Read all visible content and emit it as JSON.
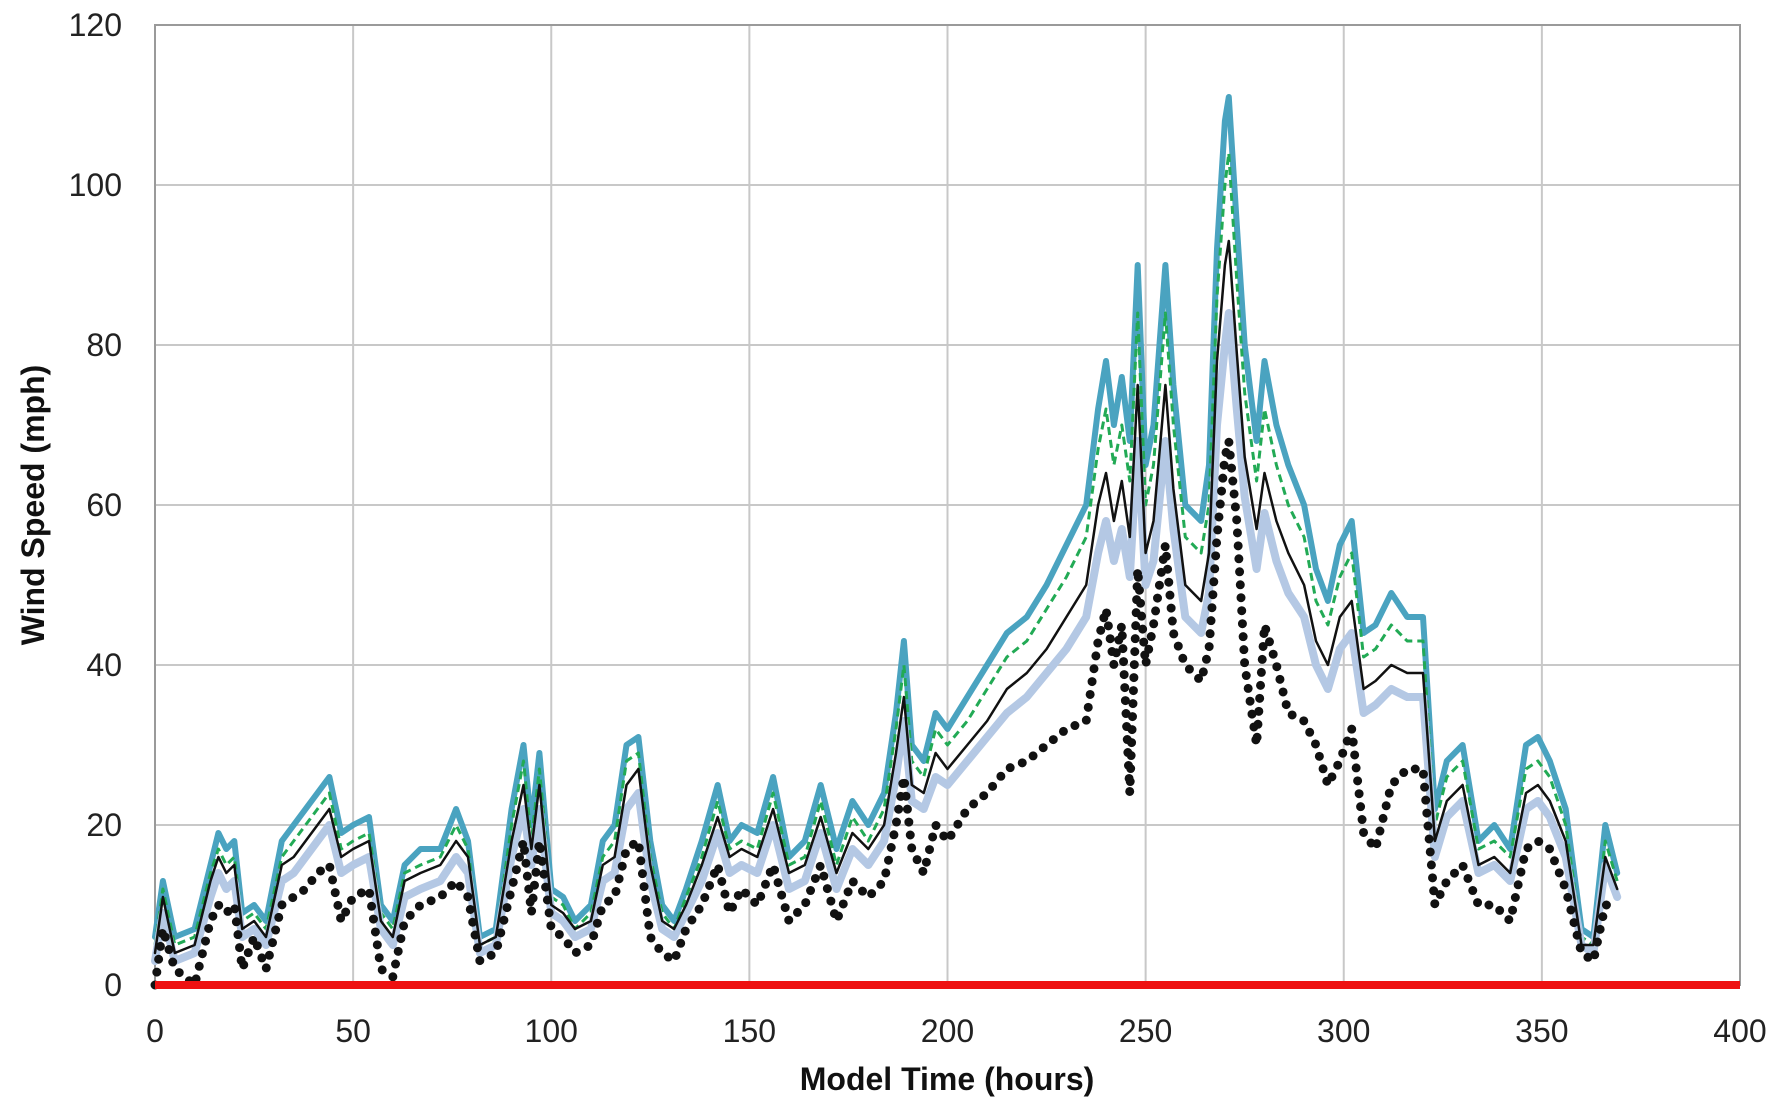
{
  "chart_data": {
    "type": "line",
    "title": "",
    "xlabel": "Model Time (hours)",
    "ylabel": "Wind Speed (mph)",
    "xlim": [
      0,
      400
    ],
    "ylim": [
      0,
      120
    ],
    "xticks": [
      "0",
      "50",
      "100",
      "150",
      "200",
      "250",
      "300",
      "350",
      "400"
    ],
    "yticks": [
      "0",
      "20",
      "40",
      "60",
      "80",
      "100",
      "120"
    ],
    "grid": true,
    "legend": "none",
    "series": [
      {
        "style": "solid-thick",
        "color": "#4aa3c0",
        "x": [
          0,
          2,
          5,
          10,
          14,
          16,
          18,
          20,
          22,
          25,
          28,
          32,
          35,
          38,
          41,
          44,
          47,
          50,
          54,
          57,
          60,
          63,
          67,
          72,
          76,
          79,
          82,
          86,
          90,
          93,
          95,
          97,
          100,
          103,
          106,
          110,
          113,
          116,
          119,
          122,
          125,
          128,
          131,
          134,
          138,
          142,
          145,
          148,
          152,
          156,
          160,
          164,
          168,
          172,
          176,
          180,
          184,
          187,
          189,
          191,
          194,
          197,
          200,
          205,
          210,
          215,
          220,
          225,
          230,
          235,
          238,
          240,
          242,
          244,
          246,
          248,
          250,
          252,
          255,
          257,
          260,
          264,
          266,
          268,
          270,
          271,
          273,
          275,
          278,
          280,
          283,
          286,
          290,
          293,
          296,
          299,
          302,
          305,
          308,
          312,
          316,
          320,
          323,
          326,
          330,
          334,
          338,
          342,
          346,
          349,
          352,
          356,
          360,
          363,
          366,
          369
        ],
        "values": [
          6,
          13,
          6,
          7,
          15,
          19,
          17,
          18,
          9,
          10,
          8,
          18,
          20,
          22,
          24,
          26,
          19,
          20,
          21,
          10,
          8,
          15,
          17,
          17,
          22,
          18,
          6,
          7,
          22,
          30,
          20,
          29,
          12,
          11,
          8,
          10,
          18,
          20,
          30,
          31,
          18,
          10,
          8,
          12,
          18,
          25,
          18,
          20,
          19,
          26,
          16,
          18,
          25,
          17,
          23,
          20,
          24,
          34,
          43,
          30,
          28,
          34,
          32,
          36,
          40,
          44,
          46,
          50,
          55,
          60,
          72,
          78,
          70,
          76,
          68,
          90,
          65,
          70,
          90,
          75,
          60,
          58,
          65,
          92,
          108,
          111,
          95,
          80,
          68,
          78,
          70,
          65,
          60,
          52,
          48,
          55,
          58,
          44,
          45,
          49,
          46,
          46,
          22,
          28,
          30,
          18,
          20,
          17,
          30,
          31,
          28,
          22,
          7,
          6,
          20,
          14
        ]
      },
      {
        "style": "dashed",
        "color": "#22aa55",
        "x": [
          0,
          2,
          5,
          10,
          14,
          16,
          18,
          20,
          22,
          25,
          28,
          32,
          35,
          38,
          41,
          44,
          47,
          50,
          54,
          57,
          60,
          63,
          67,
          72,
          76,
          79,
          82,
          86,
          90,
          93,
          95,
          97,
          100,
          103,
          106,
          110,
          113,
          116,
          119,
          122,
          125,
          128,
          131,
          134,
          138,
          142,
          145,
          148,
          152,
          156,
          160,
          164,
          168,
          172,
          176,
          180,
          184,
          187,
          189,
          191,
          194,
          197,
          200,
          205,
          210,
          215,
          220,
          225,
          230,
          235,
          238,
          240,
          242,
          244,
          246,
          248,
          250,
          252,
          255,
          257,
          260,
          264,
          266,
          268,
          270,
          271,
          273,
          275,
          278,
          280,
          283,
          286,
          290,
          293,
          296,
          299,
          302,
          305,
          308,
          312,
          316,
          320,
          323,
          326,
          330,
          334,
          338,
          342,
          346,
          349,
          352,
          356,
          360,
          363,
          366,
          369
        ],
        "values": [
          5,
          12,
          5,
          6,
          14,
          17,
          15,
          16,
          8,
          9,
          7,
          16,
          18,
          20,
          22,
          24,
          17,
          18,
          19,
          9,
          7,
          14,
          15,
          16,
          20,
          17,
          5,
          6,
          20,
          28,
          18,
          27,
          11,
          10,
          7,
          9,
          16,
          18,
          28,
          29,
          16,
          9,
          7,
          11,
          16,
          23,
          17,
          18,
          17,
          24,
          15,
          16,
          23,
          15,
          21,
          18,
          22,
          32,
          40,
          28,
          26,
          32,
          30,
          33,
          37,
          41,
          43,
          47,
          51,
          56,
          67,
          72,
          65,
          70,
          63,
          84,
          60,
          65,
          84,
          70,
          56,
          54,
          60,
          86,
          100,
          104,
          88,
          74,
          63,
          72,
          65,
          60,
          56,
          48,
          45,
          51,
          54,
          41,
          42,
          45,
          43,
          43,
          20,
          26,
          28,
          17,
          18,
          16,
          27,
          28,
          26,
          20,
          6,
          5,
          18,
          13
        ]
      },
      {
        "style": "solid-pale",
        "color": "#b4c8e4",
        "x": [
          0,
          2,
          5,
          10,
          14,
          16,
          18,
          20,
          22,
          25,
          28,
          32,
          35,
          38,
          41,
          44,
          47,
          50,
          54,
          57,
          60,
          63,
          67,
          72,
          76,
          79,
          82,
          86,
          90,
          93,
          95,
          97,
          100,
          103,
          106,
          110,
          113,
          116,
          119,
          122,
          125,
          128,
          131,
          134,
          138,
          142,
          145,
          148,
          152,
          156,
          160,
          164,
          168,
          172,
          176,
          180,
          184,
          187,
          189,
          191,
          194,
          197,
          200,
          205,
          210,
          215,
          220,
          225,
          230,
          235,
          238,
          240,
          242,
          244,
          246,
          248,
          250,
          252,
          255,
          257,
          260,
          264,
          266,
          268,
          270,
          271,
          273,
          275,
          278,
          280,
          283,
          286,
          290,
          293,
          296,
          299,
          302,
          305,
          308,
          312,
          316,
          320,
          323,
          326,
          330,
          334,
          338,
          342,
          346,
          349,
          352,
          356,
          360,
          363,
          366,
          369
        ],
        "values": [
          3,
          9,
          3,
          4,
          11,
          14,
          12,
          13,
          6,
          7,
          5,
          13,
          14,
          16,
          18,
          20,
          14,
          15,
          16,
          7,
          5,
          11,
          12,
          13,
          16,
          14,
          4,
          5,
          16,
          22,
          15,
          22,
          9,
          8,
          6,
          7,
          13,
          14,
          22,
          24,
          13,
          7,
          6,
          9,
          13,
          19,
          14,
          15,
          14,
          20,
          12,
          13,
          19,
          12,
          17,
          15,
          18,
          26,
          33,
          23,
          22,
          26,
          25,
          28,
          31,
          34,
          36,
          39,
          42,
          46,
          54,
          58,
          53,
          57,
          51,
          68,
          50,
          53,
          68,
          57,
          46,
          44,
          49,
          70,
          80,
          84,
          72,
          61,
          52,
          59,
          53,
          49,
          46,
          40,
          37,
          42,
          44,
          34,
          35,
          37,
          36,
          36,
          16,
          21,
          23,
          14,
          15,
          13,
          22,
          23,
          21,
          16,
          5,
          4,
          15,
          11
        ]
      },
      {
        "style": "solid-thin",
        "color": "#111111",
        "x": [
          0,
          2,
          5,
          10,
          14,
          16,
          18,
          20,
          22,
          25,
          28,
          32,
          35,
          38,
          41,
          44,
          47,
          50,
          54,
          57,
          60,
          63,
          67,
          72,
          76,
          79,
          82,
          86,
          90,
          93,
          95,
          97,
          100,
          103,
          106,
          110,
          113,
          116,
          119,
          122,
          125,
          128,
          131,
          134,
          138,
          142,
          145,
          148,
          152,
          156,
          160,
          164,
          168,
          172,
          176,
          180,
          184,
          187,
          189,
          191,
          194,
          197,
          200,
          205,
          210,
          215,
          220,
          225,
          230,
          235,
          238,
          240,
          242,
          244,
          246,
          248,
          250,
          252,
          255,
          257,
          260,
          264,
          266,
          268,
          270,
          271,
          273,
          275,
          278,
          280,
          283,
          286,
          290,
          293,
          296,
          299,
          302,
          305,
          308,
          312,
          316,
          320,
          323,
          326,
          330,
          334,
          338,
          342,
          346,
          349,
          352,
          356,
          360,
          363,
          366,
          369
        ],
        "values": [
          4,
          11,
          4,
          5,
          13,
          16,
          14,
          15,
          7,
          8,
          6,
          15,
          16,
          18,
          20,
          22,
          16,
          17,
          18,
          8,
          6,
          13,
          14,
          15,
          18,
          16,
          5,
          6,
          18,
          25,
          17,
          25,
          10,
          9,
          7,
          8,
          15,
          16,
          25,
          27,
          15,
          8,
          7,
          10,
          15,
          21,
          16,
          17,
          16,
          22,
          14,
          15,
          21,
          14,
          19,
          17,
          20,
          29,
          36,
          25,
          24,
          29,
          27,
          30,
          33,
          37,
          39,
          42,
          46,
          50,
          60,
          64,
          58,
          63,
          56,
          75,
          54,
          58,
          75,
          62,
          50,
          48,
          54,
          78,
          90,
          93,
          79,
          66,
          57,
          64,
          58,
          54,
          50,
          43,
          40,
          46,
          48,
          37,
          38,
          40,
          39,
          39,
          18,
          23,
          25,
          15,
          16,
          14,
          24,
          25,
          23,
          18,
          5,
          5,
          16,
          12
        ]
      },
      {
        "style": "dotted-heavy",
        "color": "#111111",
        "x": [
          0,
          2,
          5,
          10,
          14,
          16,
          18,
          20,
          22,
          25,
          28,
          32,
          35,
          38,
          41,
          44,
          47,
          50,
          54,
          57,
          60,
          63,
          67,
          72,
          76,
          79,
          82,
          86,
          90,
          93,
          95,
          97,
          100,
          103,
          106,
          110,
          113,
          116,
          119,
          122,
          125,
          128,
          131,
          134,
          138,
          142,
          145,
          148,
          152,
          156,
          160,
          164,
          168,
          172,
          176,
          180,
          184,
          187,
          189,
          191,
          194,
          197,
          200,
          205,
          210,
          215,
          220,
          225,
          230,
          235,
          238,
          240,
          242,
          244,
          246,
          248,
          250,
          252,
          255,
          257,
          260,
          264,
          266,
          268,
          270,
          271,
          273,
          275,
          278,
          280,
          283,
          286,
          290,
          293,
          296,
          299,
          302,
          305,
          308,
          312,
          316,
          320,
          323,
          326,
          330,
          334,
          338,
          342,
          346,
          349,
          352,
          356,
          360,
          363,
          366,
          369
        ],
        "values": [
          0,
          7,
          2,
          0,
          8,
          10,
          9,
          10,
          2,
          6,
          2,
          10,
          11,
          12,
          14,
          15,
          8,
          11,
          12,
          2,
          1,
          8,
          10,
          11,
          13,
          11,
          3,
          4,
          12,
          18,
          9,
          18,
          7,
          6,
          4,
          5,
          10,
          11,
          17,
          18,
          6,
          4,
          3,
          7,
          10,
          15,
          9,
          12,
          10,
          15,
          8,
          10,
          15,
          8,
          13,
          11,
          13,
          20,
          26,
          17,
          14,
          20,
          18,
          22,
          24,
          27,
          28,
          30,
          32,
          33,
          43,
          47,
          40,
          45,
          24,
          52,
          40,
          45,
          55,
          44,
          40,
          38,
          42,
          56,
          66,
          68,
          58,
          40,
          30,
          45,
          40,
          34,
          33,
          30,
          25,
          28,
          32,
          19,
          17,
          25,
          27,
          27,
          10,
          13,
          15,
          10,
          10,
          8,
          17,
          18,
          17,
          12,
          4,
          3,
          10,
          10
        ]
      },
      {
        "style": "solid-baseline",
        "color": "#ee1111",
        "x": [
          0,
          400
        ],
        "values": [
          0,
          0
        ]
      }
    ]
  }
}
